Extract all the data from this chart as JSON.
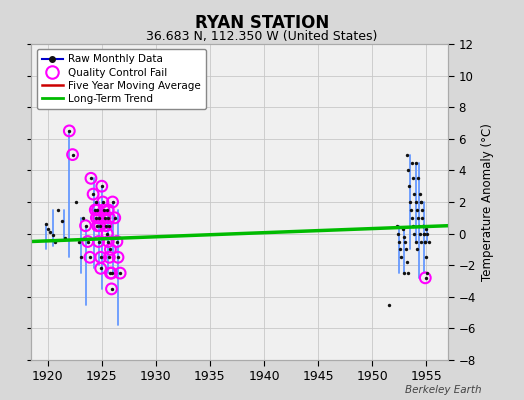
{
  "title": "RYAN STATION",
  "subtitle": "36.683 N, 112.350 W (United States)",
  "ylabel_right": "Temperature Anomaly (°C)",
  "watermark": "Berkeley Earth",
  "xlim": [
    1918.5,
    1957.0
  ],
  "ylim": [
    -8,
    12
  ],
  "yticks": [
    -8,
    -6,
    -4,
    -2,
    0,
    2,
    4,
    6,
    8,
    10,
    12
  ],
  "xticks": [
    1920,
    1925,
    1930,
    1935,
    1940,
    1945,
    1950,
    1955
  ],
  "bg_color": "#d8d8d8",
  "plot_bg_color": "#f0f0f0",
  "raw_monthly_segments": [
    {
      "year_x": 1919.8,
      "points": [
        0.6,
        0.3,
        0.1,
        -0.1,
        -0.5,
        -1.0
      ]
    },
    {
      "year_x": 1920.5,
      "points": [
        1.5,
        0.8,
        -0.3,
        -0.8
      ]
    },
    {
      "year_x": 1921.5,
      "points": [
        1.5,
        0.5,
        -0.3
      ]
    },
    {
      "year_x": 1922.0,
      "points": [
        6.5,
        5.0,
        2.0,
        -0.5,
        -1.5
      ]
    },
    {
      "year_x": 1923.0,
      "points": [
        1.0,
        0.5,
        -0.5,
        -1.5,
        -2.5
      ]
    },
    {
      "year_x": 1923.5,
      "points": [
        0.5,
        -0.2,
        -1.2,
        -2.2,
        -4.5
      ]
    },
    {
      "year_x": 1924.0,
      "points": [
        3.5,
        2.5,
        1.5,
        1.0,
        0.5,
        -0.5,
        -1.5,
        -2.2
      ]
    },
    {
      "year_x": 1924.5,
      "points": [
        2.0,
        1.5,
        1.0,
        0.5,
        0.0,
        -0.5,
        -1.0,
        -1.5,
        -2.0
      ]
    },
    {
      "year_x": 1925.0,
      "points": [
        3.0,
        2.0,
        1.5,
        1.0,
        0.5,
        0.0,
        -0.5,
        -1.5,
        -2.5,
        -3.5
      ]
    },
    {
      "year_x": 1925.5,
      "points": [
        1.5,
        1.0,
        0.5,
        0.0,
        -0.5,
        -1.0,
        -1.5,
        -2.0,
        -2.5
      ]
    },
    {
      "year_x": 1926.0,
      "points": [
        2.0,
        1.0,
        -0.5,
        -1.5,
        -2.5
      ]
    },
    {
      "year_x": 1926.5,
      "points": [
        1.5,
        -2.0,
        -5.8
      ]
    },
    {
      "year_x": 1951.5,
      "points": [
        -4.5
      ]
    },
    {
      "year_x": 1952.3,
      "points": [
        0.5,
        0.0,
        -0.5,
        -1.0,
        -1.5,
        -2.5
      ]
    },
    {
      "year_x": 1952.8,
      "points": [
        0.3,
        -0.2,
        -0.5,
        -1.0,
        -1.8,
        -2.5
      ]
    },
    {
      "year_x": 1953.2,
      "points": [
        5.0,
        4.0,
        3.0,
        2.0,
        1.5,
        1.0,
        0.5,
        0.0,
        -0.5,
        -1.0
      ]
    },
    {
      "year_x": 1953.7,
      "points": [
        4.5,
        3.5,
        2.5,
        2.0,
        1.5,
        1.0,
        0.5,
        0.0,
        -0.5
      ]
    },
    {
      "year_x": 1954.0,
      "points": [
        4.5,
        3.5,
        2.5,
        2.0,
        1.5,
        0.5,
        0.0,
        -0.5,
        -2.8
      ]
    },
    {
      "year_x": 1954.5,
      "points": [
        2.0,
        1.0,
        0.5,
        0.0,
        -0.5,
        -1.5,
        -2.5
      ]
    },
    {
      "year_x": 1955.0,
      "points": [
        0.3,
        0.0,
        -0.5
      ]
    }
  ],
  "raw_scatter_x": [
    1919.8,
    1920.0,
    1920.2,
    1920.5,
    1920.7,
    1921.0,
    1921.3,
    1921.6,
    1922.0,
    1922.3,
    1922.6,
    1922.9,
    1923.1,
    1923.3,
    1923.5,
    1923.7,
    1923.9,
    1924.0,
    1924.2,
    1924.4,
    1924.5,
    1924.6,
    1924.7,
    1924.9,
    1924.5,
    1924.6,
    1924.7,
    1924.8,
    1924.9,
    1925.0,
    1925.1,
    1925.2,
    1925.3,
    1925.4,
    1925.5,
    1925.6,
    1925.7,
    1925.8,
    1925.9,
    1925.5,
    1925.6,
    1925.7,
    1925.8,
    1925.9,
    1926.0,
    1926.2,
    1926.4,
    1926.5,
    1926.7,
    1951.5,
    1952.3,
    1952.4,
    1952.5,
    1952.6,
    1952.7,
    1952.9,
    1952.8,
    1952.9,
    1953.0,
    1953.1,
    1953.2,
    1953.3,
    1953.2,
    1953.3,
    1953.4,
    1953.5,
    1953.6,
    1953.7,
    1953.8,
    1953.9,
    1954.0,
    1954.1,
    1953.7,
    1953.8,
    1953.9,
    1954.0,
    1954.1,
    1954.2,
    1954.3,
    1954.4,
    1954.5,
    1954.0,
    1954.2,
    1954.4,
    1954.5,
    1954.6,
    1954.7,
    1954.8,
    1954.9,
    1955.0,
    1954.5,
    1954.6,
    1954.7,
    1954.8,
    1954.9,
    1955.0,
    1955.1,
    1955.0,
    1955.1,
    1955.2
  ],
  "raw_scatter_y": [
    0.6,
    0.3,
    0.1,
    -0.1,
    -0.5,
    1.5,
    0.8,
    -0.3,
    6.5,
    5.0,
    2.0,
    -0.5,
    -1.5,
    1.0,
    0.5,
    -0.5,
    -1.5,
    3.5,
    2.5,
    1.5,
    1.0,
    0.5,
    -0.5,
    -2.2,
    2.0,
    1.5,
    1.0,
    0.5,
    -1.5,
    3.0,
    2.0,
    1.5,
    1.0,
    0.5,
    0.0,
    -0.5,
    -1.5,
    -2.5,
    -3.5,
    1.5,
    1.0,
    0.5,
    -1.0,
    -2.5,
    2.0,
    1.0,
    -0.5,
    -1.5,
    -2.5,
    -4.5,
    0.5,
    0.0,
    -0.5,
    -1.0,
    -1.5,
    -2.5,
    0.3,
    -0.2,
    -0.5,
    -1.0,
    -1.8,
    -2.5,
    5.0,
    4.0,
    3.0,
    2.0,
    1.5,
    1.0,
    0.5,
    0.0,
    -0.5,
    -1.0,
    4.5,
    3.5,
    2.5,
    2.0,
    1.5,
    1.0,
    0.5,
    0.0,
    -0.5,
    4.5,
    3.5,
    2.5,
    2.0,
    1.5,
    0.5,
    0.0,
    -0.5,
    -2.8,
    2.0,
    1.0,
    0.5,
    0.0,
    -0.5,
    -1.5,
    -2.5,
    0.3,
    0.0,
    -0.5
  ],
  "qc_fail_x": [
    1922.0,
    1922.3,
    1923.5,
    1923.7,
    1923.9,
    1924.0,
    1924.2,
    1924.4,
    1924.5,
    1924.6,
    1924.7,
    1924.9,
    1924.6,
    1924.7,
    1924.8,
    1924.9,
    1925.0,
    1925.1,
    1925.2,
    1925.3,
    1925.4,
    1925.5,
    1925.6,
    1925.7,
    1925.8,
    1925.9,
    1925.6,
    1925.7,
    1925.8,
    1925.9,
    1926.0,
    1926.2,
    1926.4,
    1926.5,
    1926.7,
    1954.9
  ],
  "qc_fail_y": [
    6.5,
    5.0,
    0.5,
    -0.5,
    -1.5,
    3.5,
    2.5,
    1.5,
    1.0,
    0.5,
    -0.5,
    -2.2,
    1.5,
    1.0,
    0.5,
    -1.5,
    3.0,
    2.0,
    1.5,
    1.0,
    0.5,
    0.0,
    -0.5,
    -1.5,
    -2.5,
    -3.5,
    1.5,
    1.0,
    -1.0,
    -2.5,
    2.0,
    1.0,
    -0.5,
    -1.5,
    -2.5,
    -2.8
  ],
  "vert_lines": [
    {
      "x": 1919.8,
      "ymin": -1.0,
      "ymax": 0.6
    },
    {
      "x": 1920.5,
      "ymin": -0.8,
      "ymax": 1.5
    },
    {
      "x": 1921.5,
      "ymin": -0.3,
      "ymax": 1.5
    },
    {
      "x": 1922.0,
      "ymin": -1.5,
      "ymax": 6.5
    },
    {
      "x": 1923.1,
      "ymin": -2.5,
      "ymax": 1.0
    },
    {
      "x": 1923.5,
      "ymin": -4.5,
      "ymax": 0.5
    },
    {
      "x": 1924.3,
      "ymin": -2.2,
      "ymax": 3.5
    },
    {
      "x": 1924.7,
      "ymin": -2.0,
      "ymax": 2.0
    },
    {
      "x": 1925.0,
      "ymin": -3.5,
      "ymax": 3.0
    },
    {
      "x": 1925.6,
      "ymin": -2.5,
      "ymax": 1.5
    },
    {
      "x": 1926.0,
      "ymin": -2.5,
      "ymax": 2.0
    },
    {
      "x": 1926.5,
      "ymin": -5.8,
      "ymax": 1.5
    },
    {
      "x": 1952.5,
      "ymin": -2.5,
      "ymax": 0.5
    },
    {
      "x": 1952.9,
      "ymin": -2.5,
      "ymax": 0.3
    },
    {
      "x": 1953.5,
      "ymin": -1.0,
      "ymax": 5.0
    },
    {
      "x": 1954.0,
      "ymin": -0.5,
      "ymax": 4.5
    },
    {
      "x": 1954.3,
      "ymin": -2.8,
      "ymax": 4.5
    },
    {
      "x": 1954.8,
      "ymin": -2.5,
      "ymax": 2.0
    },
    {
      "x": 1955.1,
      "ymin": -0.5,
      "ymax": 0.3
    }
  ],
  "trend_x": [
    1918.5,
    1957.0
  ],
  "trend_y": [
    -0.5,
    0.5
  ],
  "raw_line_color": "#6699ff",
  "raw_dot_color": "#111111",
  "qc_color": "#ff00ff",
  "moving_avg_color": "#cc0000",
  "trend_color": "#00bb00",
  "grid_color": "#c8c8c8",
  "legend_line_color": "#0000cc"
}
